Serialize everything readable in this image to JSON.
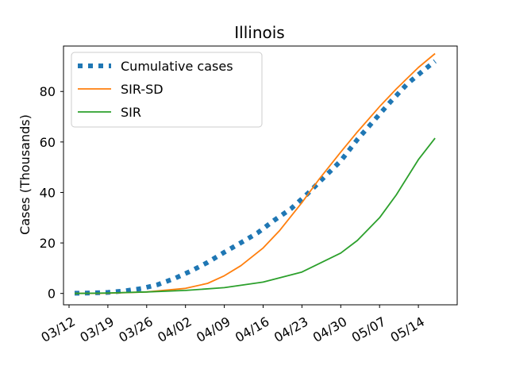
{
  "chart_data": {
    "type": "line",
    "title": "Illinois",
    "xlabel": "",
    "ylabel": "Cases (Thousands)",
    "x_axis": {
      "type": "date",
      "range": [
        "2020-03-11",
        "2020-05-21"
      ],
      "ticks": [
        {
          "date": "2020-03-12",
          "label": "03/12"
        },
        {
          "date": "2020-03-19",
          "label": "03/19"
        },
        {
          "date": "2020-03-26",
          "label": "03/26"
        },
        {
          "date": "2020-04-02",
          "label": "04/02"
        },
        {
          "date": "2020-04-09",
          "label": "04/09"
        },
        {
          "date": "2020-04-16",
          "label": "04/16"
        },
        {
          "date": "2020-04-23",
          "label": "04/23"
        },
        {
          "date": "2020-04-30",
          "label": "04/30"
        },
        {
          "date": "2020-05-07",
          "label": "05/07"
        },
        {
          "date": "2020-05-14",
          "label": "05/14"
        }
      ]
    },
    "y_axis": {
      "range": [
        -4.5,
        98
      ],
      "ticks": [
        0,
        20,
        40,
        60,
        80
      ]
    },
    "grid": false,
    "legend": {
      "location": "top-left"
    },
    "series": [
      {
        "name": "Cumulative cases",
        "color": "#1f77b4",
        "style": "dotted",
        "points": [
          [
            "2020-03-13",
            0.1
          ],
          [
            "2020-03-16",
            0.2
          ],
          [
            "2020-03-19",
            0.4
          ],
          [
            "2020-03-22",
            1.0
          ],
          [
            "2020-03-25",
            1.9
          ],
          [
            "2020-03-28",
            3.5
          ],
          [
            "2020-03-31",
            5.9
          ],
          [
            "2020-04-03",
            8.9
          ],
          [
            "2020-04-06",
            12.3
          ],
          [
            "2020-04-09",
            16.3
          ],
          [
            "2020-04-12",
            20.1
          ],
          [
            "2020-04-15",
            24.0
          ],
          [
            "2020-04-18",
            29.0
          ],
          [
            "2020-04-21",
            33.5
          ],
          [
            "2020-04-24",
            39.5
          ],
          [
            "2020-04-27",
            46.0
          ],
          [
            "2020-04-30",
            52.5
          ],
          [
            "2020-05-03",
            61.0
          ],
          [
            "2020-05-06",
            68.5
          ],
          [
            "2020-05-09",
            76.0
          ],
          [
            "2020-05-12",
            83.0
          ],
          [
            "2020-05-15",
            88.5
          ],
          [
            "2020-05-17",
            92.0
          ]
        ]
      },
      {
        "name": "SIR-SD",
        "color": "#ff7f0e",
        "style": "solid",
        "points": [
          [
            "2020-03-13",
            0.0
          ],
          [
            "2020-03-19",
            0.1
          ],
          [
            "2020-03-26",
            0.6
          ],
          [
            "2020-04-02",
            2.0
          ],
          [
            "2020-04-06",
            4.0
          ],
          [
            "2020-04-09",
            7.0
          ],
          [
            "2020-04-12",
            11.0
          ],
          [
            "2020-04-16",
            18.0
          ],
          [
            "2020-04-19",
            25.0
          ],
          [
            "2020-04-23",
            36.0
          ],
          [
            "2020-04-26",
            45.0
          ],
          [
            "2020-04-30",
            56.0
          ],
          [
            "2020-05-03",
            64.0
          ],
          [
            "2020-05-07",
            74.0
          ],
          [
            "2020-05-10",
            81.0
          ],
          [
            "2020-05-14",
            89.5
          ],
          [
            "2020-05-17",
            95.0
          ]
        ]
      },
      {
        "name": "SIR",
        "color": "#2ca02c",
        "style": "solid",
        "points": [
          [
            "2020-03-13",
            0.0
          ],
          [
            "2020-03-19",
            0.2
          ],
          [
            "2020-03-26",
            0.6
          ],
          [
            "2020-04-02",
            1.2
          ],
          [
            "2020-04-09",
            2.3
          ],
          [
            "2020-04-16",
            4.5
          ],
          [
            "2020-04-23",
            8.5
          ],
          [
            "2020-04-30",
            16.0
          ],
          [
            "2020-05-03",
            21.0
          ],
          [
            "2020-05-07",
            30.0
          ],
          [
            "2020-05-10",
            39.0
          ],
          [
            "2020-05-14",
            53.0
          ],
          [
            "2020-05-17",
            61.5
          ]
        ]
      }
    ]
  }
}
